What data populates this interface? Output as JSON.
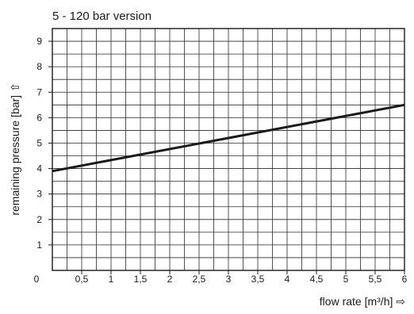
{
  "chart_data": {
    "type": "line",
    "title": "5 - 120 bar version",
    "xlabel": "flow rate [m³/h] ⇨",
    "ylabel": "remaining pressure [bar] ⇧",
    "xlim": [
      0,
      6
    ],
    "ylim": [
      0,
      9.5
    ],
    "origin_label": "0",
    "x_ticks": [
      {
        "value": 0.5,
        "label": "0,5"
      },
      {
        "value": 1,
        "label": "1"
      },
      {
        "value": 1.5,
        "label": "1,5"
      },
      {
        "value": 2,
        "label": "2"
      },
      {
        "value": 2.5,
        "label": "2,5"
      },
      {
        "value": 3,
        "label": "3"
      },
      {
        "value": 3.5,
        "label": "3,5"
      },
      {
        "value": 4,
        "label": "4"
      },
      {
        "value": 4.5,
        "label": "4,5"
      },
      {
        "value": 5,
        "label": "5"
      },
      {
        "value": 5.5,
        "label": "5,5"
      },
      {
        "value": 6,
        "label": "6"
      }
    ],
    "y_ticks": [
      {
        "value": 1,
        "label": "1"
      },
      {
        "value": 2,
        "label": "2"
      },
      {
        "value": 3,
        "label": "3"
      },
      {
        "value": 4,
        "label": "4"
      },
      {
        "value": 5,
        "label": "5"
      },
      {
        "value": 6,
        "label": "6"
      },
      {
        "value": 7,
        "label": "7"
      },
      {
        "value": 8,
        "label": "8"
      },
      {
        "value": 9,
        "label": "9"
      }
    ],
    "grid": true,
    "series": [
      {
        "x": [
          0,
          6
        ],
        "y": [
          3.9,
          6.5
        ],
        "color": "#1a1a1a"
      }
    ]
  }
}
